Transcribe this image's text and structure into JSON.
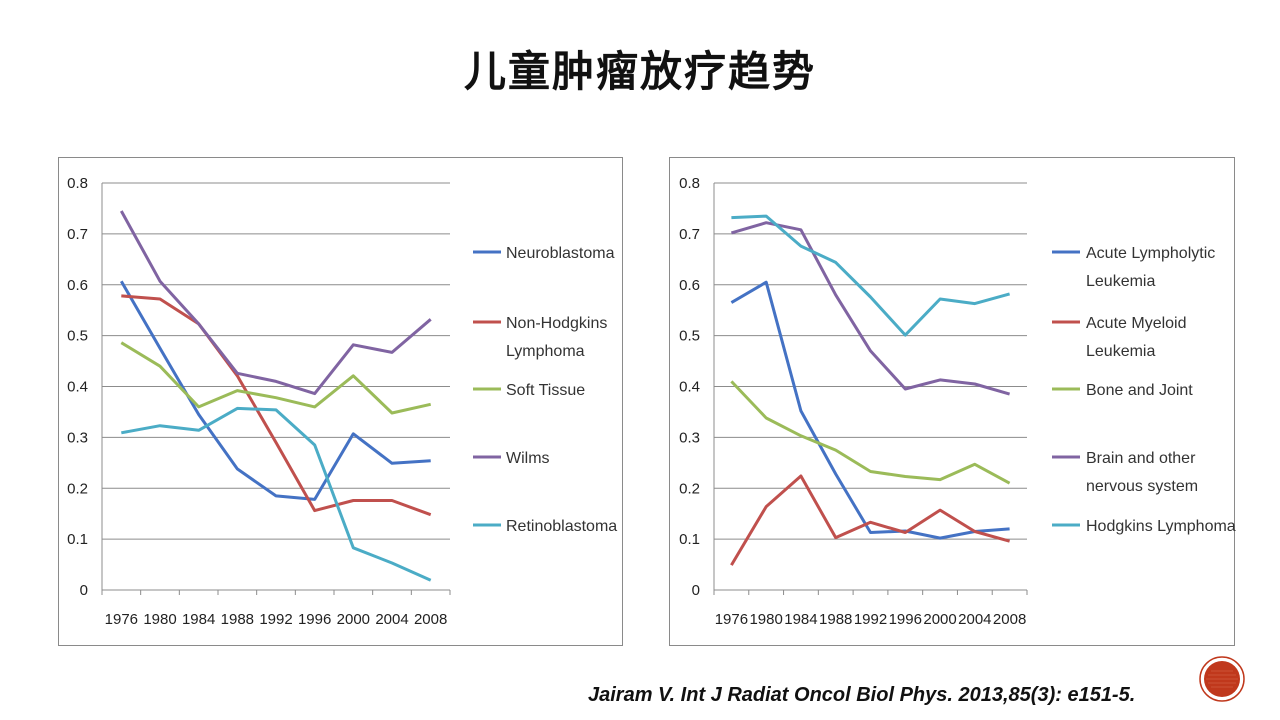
{
  "slide": {
    "title": "儿童肿瘤放疗趋势",
    "citation": "Jairam V. Int J Radiat Oncol Biol Phys. 2013,85(3): e151-5."
  },
  "badge": {
    "icon": "round-badge-icon",
    "color": "#c0381c"
  },
  "chart_data": [
    {
      "type": "line",
      "x": [
        "1976",
        "1980",
        "1984",
        "1988",
        "1992",
        "1996",
        "2000",
        "2004",
        "2008"
      ],
      "ylim": [
        0,
        0.8
      ],
      "yticks": [
        "0",
        "0.1",
        "0.2",
        "0.3",
        "0.4",
        "0.5",
        "0.6",
        "0.7",
        "0.8"
      ],
      "grid": true,
      "legend": "right",
      "series": [
        {
          "name": "Neuroblastoma",
          "color": "#4472c4",
          "values": [
            0.607,
            0.475,
            0.345,
            0.238,
            0.185,
            0.178,
            0.307,
            0.249,
            0.254
          ]
        },
        {
          "name": "Non-Hodgkins Lymphoma",
          "color": "#c0504d",
          "values": [
            0.578,
            0.572,
            0.523,
            0.421,
            0.29,
            0.156,
            0.176,
            0.176,
            0.148
          ]
        },
        {
          "name": "Soft Tissue",
          "color": "#9bbb59",
          "values": [
            0.486,
            0.44,
            0.36,
            0.392,
            0.378,
            0.36,
            0.421,
            0.348,
            0.365
          ]
        },
        {
          "name": "Wilms",
          "color": "#8064a2",
          "values": [
            0.745,
            0.607,
            0.523,
            0.426,
            0.41,
            0.386,
            0.482,
            0.467,
            0.532
          ]
        },
        {
          "name": "Retinoblastoma",
          "color": "#4bacc6",
          "values": [
            0.309,
            0.323,
            0.314,
            0.357,
            0.354,
            0.285,
            0.083,
            0.053,
            0.019
          ]
        }
      ]
    },
    {
      "type": "line",
      "x": [
        "1976",
        "1980",
        "1984",
        "1988",
        "1992",
        "1996",
        "2000",
        "2004",
        "2008"
      ],
      "ylim": [
        0,
        0.8
      ],
      "yticks": [
        "0",
        "0.1",
        "0.2",
        "0.3",
        "0.4",
        "0.5",
        "0.6",
        "0.7",
        "0.8"
      ],
      "grid": true,
      "legend": "right",
      "series": [
        {
          "name": "Acute Lympholytic Leukemia",
          "color": "#4472c4",
          "values": [
            0.565,
            0.605,
            0.352,
            0.228,
            0.113,
            0.116,
            0.102,
            0.115,
            0.12
          ]
        },
        {
          "name": "Acute Myeloid Leukemia",
          "color": "#c0504d",
          "values": [
            0.049,
            0.164,
            0.224,
            0.103,
            0.133,
            0.113,
            0.157,
            0.115,
            0.096
          ]
        },
        {
          "name": "Bone and Joint",
          "color": "#9bbb59",
          "values": [
            0.41,
            0.338,
            0.303,
            0.275,
            0.233,
            0.223,
            0.217,
            0.247,
            0.21
          ]
        },
        {
          "name": "Brain and other nervous system",
          "color": "#8064a2",
          "values": [
            0.702,
            0.722,
            0.708,
            0.58,
            0.47,
            0.395,
            0.413,
            0.405,
            0.385
          ]
        },
        {
          "name": "Hodgkins Lymphoma",
          "color": "#4bacc6",
          "values": [
            0.732,
            0.735,
            0.676,
            0.644,
            0.576,
            0.501,
            0.572,
            0.563,
            0.582
          ]
        }
      ]
    }
  ]
}
